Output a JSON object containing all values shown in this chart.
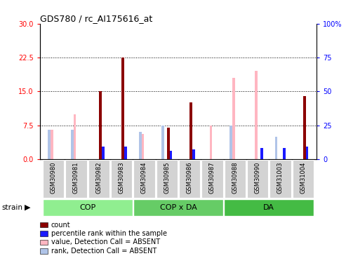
{
  "title": "GDS780 / rc_AI175616_at",
  "samples": [
    "GSM30980",
    "GSM30981",
    "GSM30982",
    "GSM30983",
    "GSM30984",
    "GSM30985",
    "GSM30986",
    "GSM30987",
    "GSM30988",
    "GSM30990",
    "GSM31003",
    "GSM31004"
  ],
  "group_names": [
    "COP",
    "COP x DA",
    "DA"
  ],
  "group_ranges": [
    [
      0,
      3
    ],
    [
      4,
      7
    ],
    [
      8,
      11
    ]
  ],
  "group_colors": [
    "#90ee90",
    "#66cc66",
    "#44bb44"
  ],
  "count_values": [
    0,
    0,
    15,
    22.5,
    0,
    7,
    12.5,
    0,
    0,
    0,
    0,
    14
  ],
  "percentile_values": [
    0,
    0,
    9,
    9,
    0,
    6,
    7,
    0,
    0,
    8,
    8,
    9
  ],
  "absent_value_values": [
    6.5,
    10,
    0,
    0,
    5.5,
    0,
    0,
    7.5,
    18,
    19.5,
    0,
    0
  ],
  "absent_rank_values": [
    6.5,
    6.5,
    0,
    0,
    6,
    7.5,
    0,
    0,
    7.5,
    0,
    5,
    0
  ],
  "ylim_left": [
    0,
    30
  ],
  "ylim_right": [
    0,
    100
  ],
  "yticks_left": [
    0,
    7.5,
    15,
    22.5,
    30
  ],
  "yticks_right": [
    0,
    25,
    50,
    75,
    100
  ],
  "bar_width": 0.12,
  "color_count": "#8B0000",
  "color_percentile": "#1a1aff",
  "color_absent_value": "#FFB6C1",
  "color_absent_rank": "#b0c4e8",
  "legend_labels": [
    "count",
    "percentile rank within the sample",
    "value, Detection Call = ABSENT",
    "rank, Detection Call = ABSENT"
  ]
}
